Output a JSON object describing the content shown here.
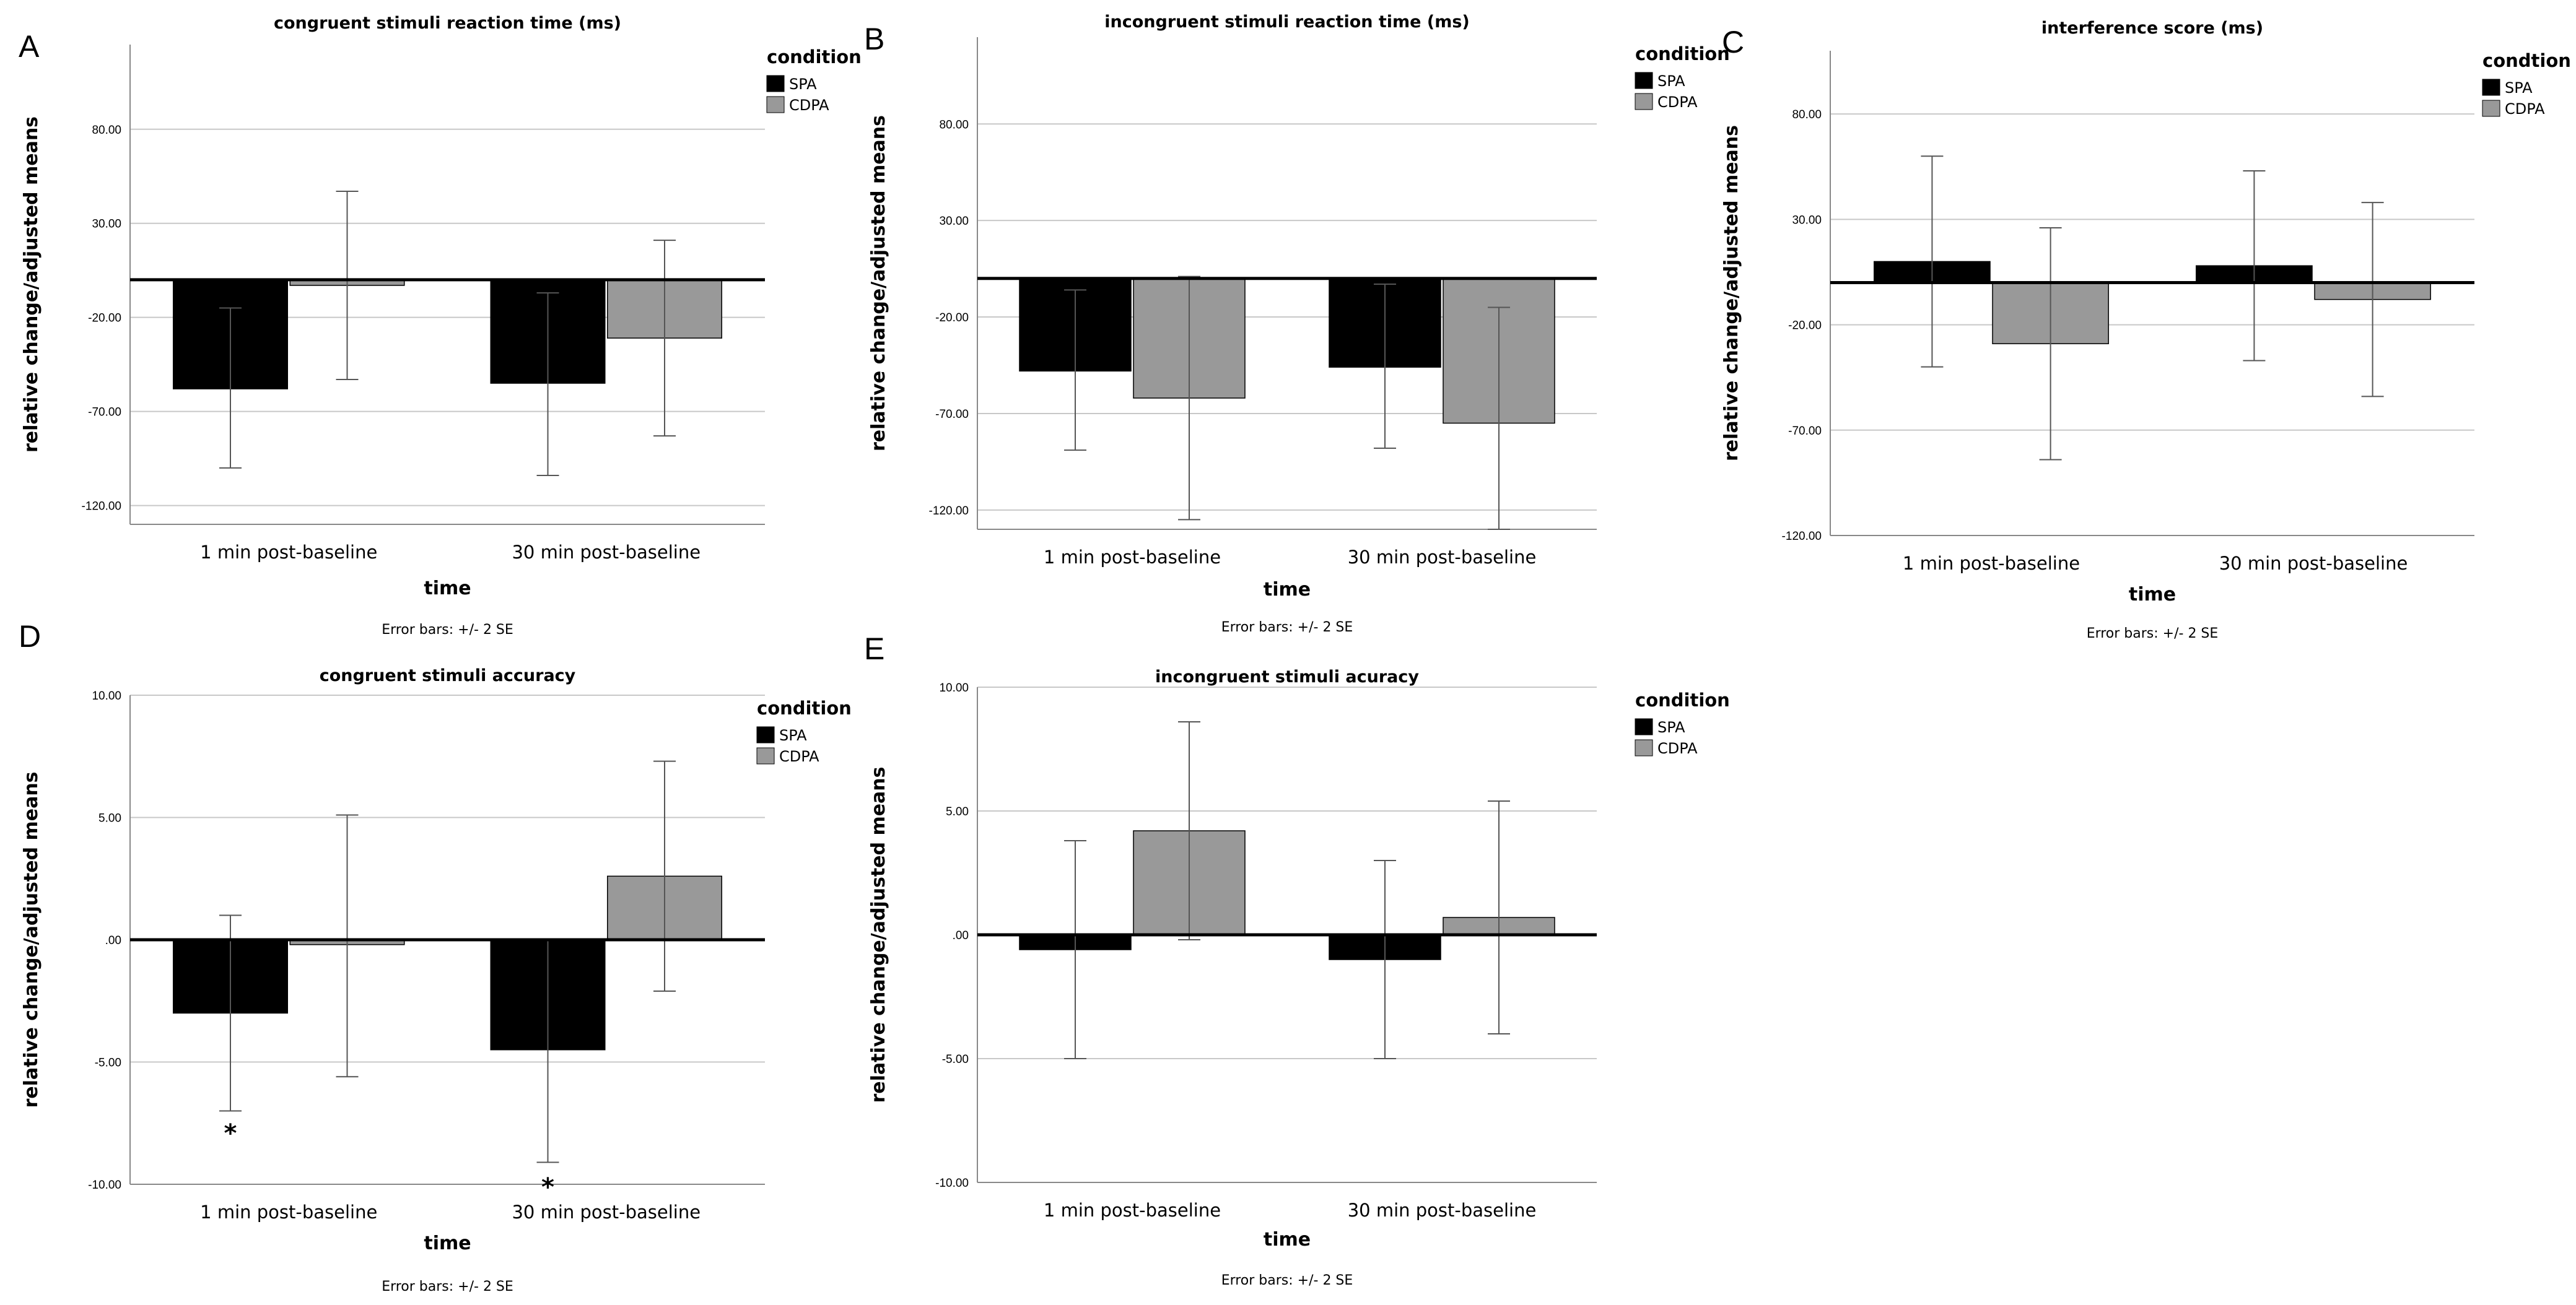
{
  "figure": {
    "background": "#ffffff"
  },
  "chart_data": [
    {
      "type": "bar",
      "panel": "A",
      "title": "congruent stimuli reaction time (ms)",
      "xlabel": "time",
      "ylabel": "relative change/adjusted means",
      "categories": [
        "1 min post-baseline",
        "30 min post-baseline"
      ],
      "ylim": [
        -130,
        125
      ],
      "yticks": [
        80,
        30,
        -20,
        -70,
        -120
      ],
      "ytick_labels": [
        "80.00",
        "30.00",
        "-20.00",
        "-70.00",
        "-120.00"
      ],
      "grid": true,
      "legend": {
        "title": "condition",
        "position": "right"
      },
      "series": [
        {
          "name": "SPA",
          "color": "#000000",
          "values": [
            -58,
            -55
          ],
          "error_low": [
            -100,
            -104
          ],
          "error_high": [
            -15,
            -7
          ]
        },
        {
          "name": "CDPA",
          "color": "#999999",
          "values": [
            -3,
            -31
          ],
          "error_low": [
            -53,
            -83
          ],
          "error_high": [
            47,
            21
          ]
        }
      ],
      "annotations": [],
      "footnote": "Error bars: +/- 2 SE"
    },
    {
      "type": "bar",
      "panel": "B",
      "title": "incongruent stimuli reaction time (ms)",
      "xlabel": "time",
      "ylabel": "relative change/adjusted means",
      "categories": [
        "1 min post-baseline",
        "30 min post-baseline"
      ],
      "ylim": [
        -130,
        125
      ],
      "yticks": [
        80,
        30,
        -20,
        -70,
        -120
      ],
      "ytick_labels": [
        "80.00",
        "30.00",
        "-20.00",
        "-70.00",
        "-120.00"
      ],
      "grid": true,
      "legend": {
        "title": "condition",
        "position": "right"
      },
      "series": [
        {
          "name": "SPA",
          "color": "#000000",
          "values": [
            -48,
            -46
          ],
          "error_low": [
            -89,
            -88
          ],
          "error_high": [
            -6,
            -3
          ]
        },
        {
          "name": "CDPA",
          "color": "#999999",
          "values": [
            -62,
            -75
          ],
          "error_low": [
            -125,
            -130
          ],
          "error_high": [
            1,
            -15
          ]
        }
      ],
      "annotations": [],
      "footnote": "Error bars: +/- 2 SE"
    },
    {
      "type": "bar",
      "panel": "C",
      "title": "interference score (ms)",
      "xlabel": "time",
      "ylabel": "relative change/adjusted means",
      "categories": [
        "1 min post-baseline",
        "30 min post-baseline"
      ],
      "ylim": [
        -120,
        110
      ],
      "yticks": [
        80,
        30,
        -20,
        -70,
        -120
      ],
      "ytick_labels": [
        "80.00",
        "30.00",
        "-20.00",
        "-70.00",
        "-120.00"
      ],
      "grid": true,
      "legend": {
        "title": "condtion",
        "position": "right"
      },
      "series": [
        {
          "name": "SPA",
          "color": "#000000",
          "values": [
            10,
            8
          ],
          "error_low": [
            -40,
            -37
          ],
          "error_high": [
            60,
            53
          ]
        },
        {
          "name": "CDPA",
          "color": "#999999",
          "values": [
            -29,
            -8
          ],
          "error_low": [
            -84,
            -54
          ],
          "error_high": [
            26,
            38
          ]
        }
      ],
      "annotations": [],
      "footnote": "Error bars: +/- 2 SE"
    },
    {
      "type": "bar",
      "panel": "D",
      "title": "congruent stimuli accuracy",
      "xlabel": "time",
      "ylabel": "relative change/adjusted means",
      "categories": [
        "1 min post-baseline",
        "30 min post-baseline"
      ],
      "ylim": [
        -10,
        10
      ],
      "yticks": [
        10,
        5,
        0,
        -5,
        -10
      ],
      "ytick_labels": [
        "10.00",
        "5.00",
        ".00",
        "-5.00",
        "-10.00"
      ],
      "grid": true,
      "legend": {
        "title": "condition",
        "position": "right"
      },
      "series": [
        {
          "name": "SPA",
          "color": "#000000",
          "values": [
            -3.0,
            -4.5
          ],
          "error_low": [
            -7.0,
            -9.1
          ],
          "error_high": [
            1.0,
            0.0
          ]
        },
        {
          "name": "CDPA",
          "color": "#999999",
          "values": [
            -0.2,
            2.6
          ],
          "error_low": [
            -5.6,
            -2.1
          ],
          "error_high": [
            5.1,
            7.3
          ]
        }
      ],
      "annotations": [
        {
          "text": "*",
          "category": "1 min post-baseline",
          "series": "SPA",
          "y": -7.7
        },
        {
          "text": "*",
          "category": "30 min post-baseline",
          "series": "SPA",
          "y": -9.9
        }
      ],
      "footnote": "Error bars: +/- 2 SE"
    },
    {
      "type": "bar",
      "panel": "E",
      "title": "incongruent stimuli acuracy",
      "xlabel": "time",
      "ylabel": "relative change/adjusted means",
      "categories": [
        "1 min post-baseline",
        "30 min post-baseline"
      ],
      "ylim": [
        -10,
        10
      ],
      "yticks": [
        10,
        5,
        0,
        -5,
        -10
      ],
      "ytick_labels": [
        "10.00",
        "5.00",
        ".00",
        "-5.00",
        "-10.00"
      ],
      "grid": true,
      "legend": {
        "title": "condition",
        "position": "right"
      },
      "series": [
        {
          "name": "SPA",
          "color": "#000000",
          "values": [
            -0.6,
            -1.0
          ],
          "error_low": [
            -5.0,
            -5.0
          ],
          "error_high": [
            3.8,
            3.0
          ]
        },
        {
          "name": "CDPA",
          "color": "#999999",
          "values": [
            4.2,
            0.7
          ],
          "error_low": [
            -0.2,
            -4.0
          ],
          "error_high": [
            8.6,
            5.4
          ]
        }
      ],
      "annotations": [],
      "footnote": "Error bars: +/- 2 SE"
    }
  ]
}
